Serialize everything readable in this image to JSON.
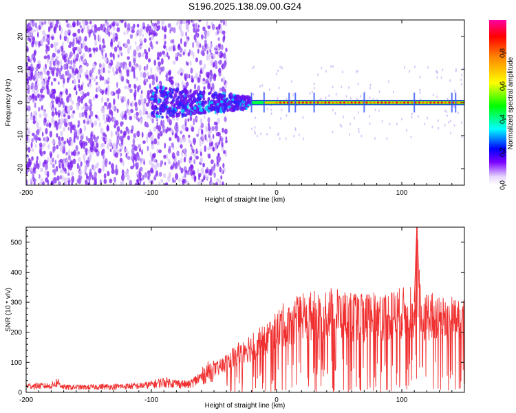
{
  "title": "S196.2025.138.09.00.G24",
  "chart_data": [
    {
      "type": "heatmap",
      "xlabel": "Height of straight line (km)",
      "ylabel": "Frequency (Hz)",
      "xlim": [
        -200,
        150
      ],
      "ylim": [
        -25,
        25
      ],
      "xticks": [
        -200,
        -100,
        0,
        100
      ],
      "yticks": [
        20,
        10,
        0,
        -10,
        -20
      ],
      "colorbar": {
        "label": "Normalized spectral amplitude",
        "range": [
          0.0,
          1.0
        ],
        "ticks": [
          0.0,
          0.2,
          0.4,
          0.6,
          0.8
        ],
        "colormap": [
          "#ffffff",
          "#7a00ff",
          "#0000ff",
          "#00ffff",
          "#00ff00",
          "#ffff00",
          "#ff8000",
          "#ff0000",
          "#ff00a0"
        ]
      },
      "features": {
        "dominant_frequency_hz": 0,
        "coherent_line_from_km": -20,
        "coherent_line_to_km": 150,
        "noise_region_to_km": -50
      }
    },
    {
      "type": "line",
      "xlabel": "Height of straight line (km)",
      "ylabel": "SNR (10 * v/v)",
      "xlim": [
        -200,
        150
      ],
      "ylim": [
        0,
        550
      ],
      "xticks": [
        -200,
        -100,
        0,
        100
      ],
      "yticks": [
        0,
        100,
        200,
        300,
        400,
        500
      ],
      "color": "#f03030",
      "series": [
        {
          "x": [
            -200,
            -190,
            -180,
            -175,
            -170,
            -160,
            -150,
            -140,
            -130,
            -120,
            -110,
            -100,
            -90,
            -80,
            -70,
            -60,
            -55,
            -50,
            -45,
            -40,
            -35,
            -30,
            -25,
            -20,
            -15,
            -10,
            -5,
            0,
            5,
            10,
            15,
            20,
            30,
            40,
            50,
            60,
            70,
            80,
            90,
            100,
            110,
            112,
            115,
            120,
            130,
            140,
            150
          ],
          "values": [
            25,
            25,
            25,
            40,
            20,
            20,
            20,
            22,
            22,
            24,
            25,
            30,
            40,
            35,
            30,
            60,
            80,
            90,
            100,
            120,
            140,
            160,
            180,
            180,
            200,
            200,
            230,
            250,
            270,
            280,
            290,
            300,
            310,
            320,
            320,
            300,
            300,
            310,
            310,
            320,
            320,
            550,
            300,
            310,
            300,
            300,
            320
          ]
        }
      ]
    }
  ]
}
